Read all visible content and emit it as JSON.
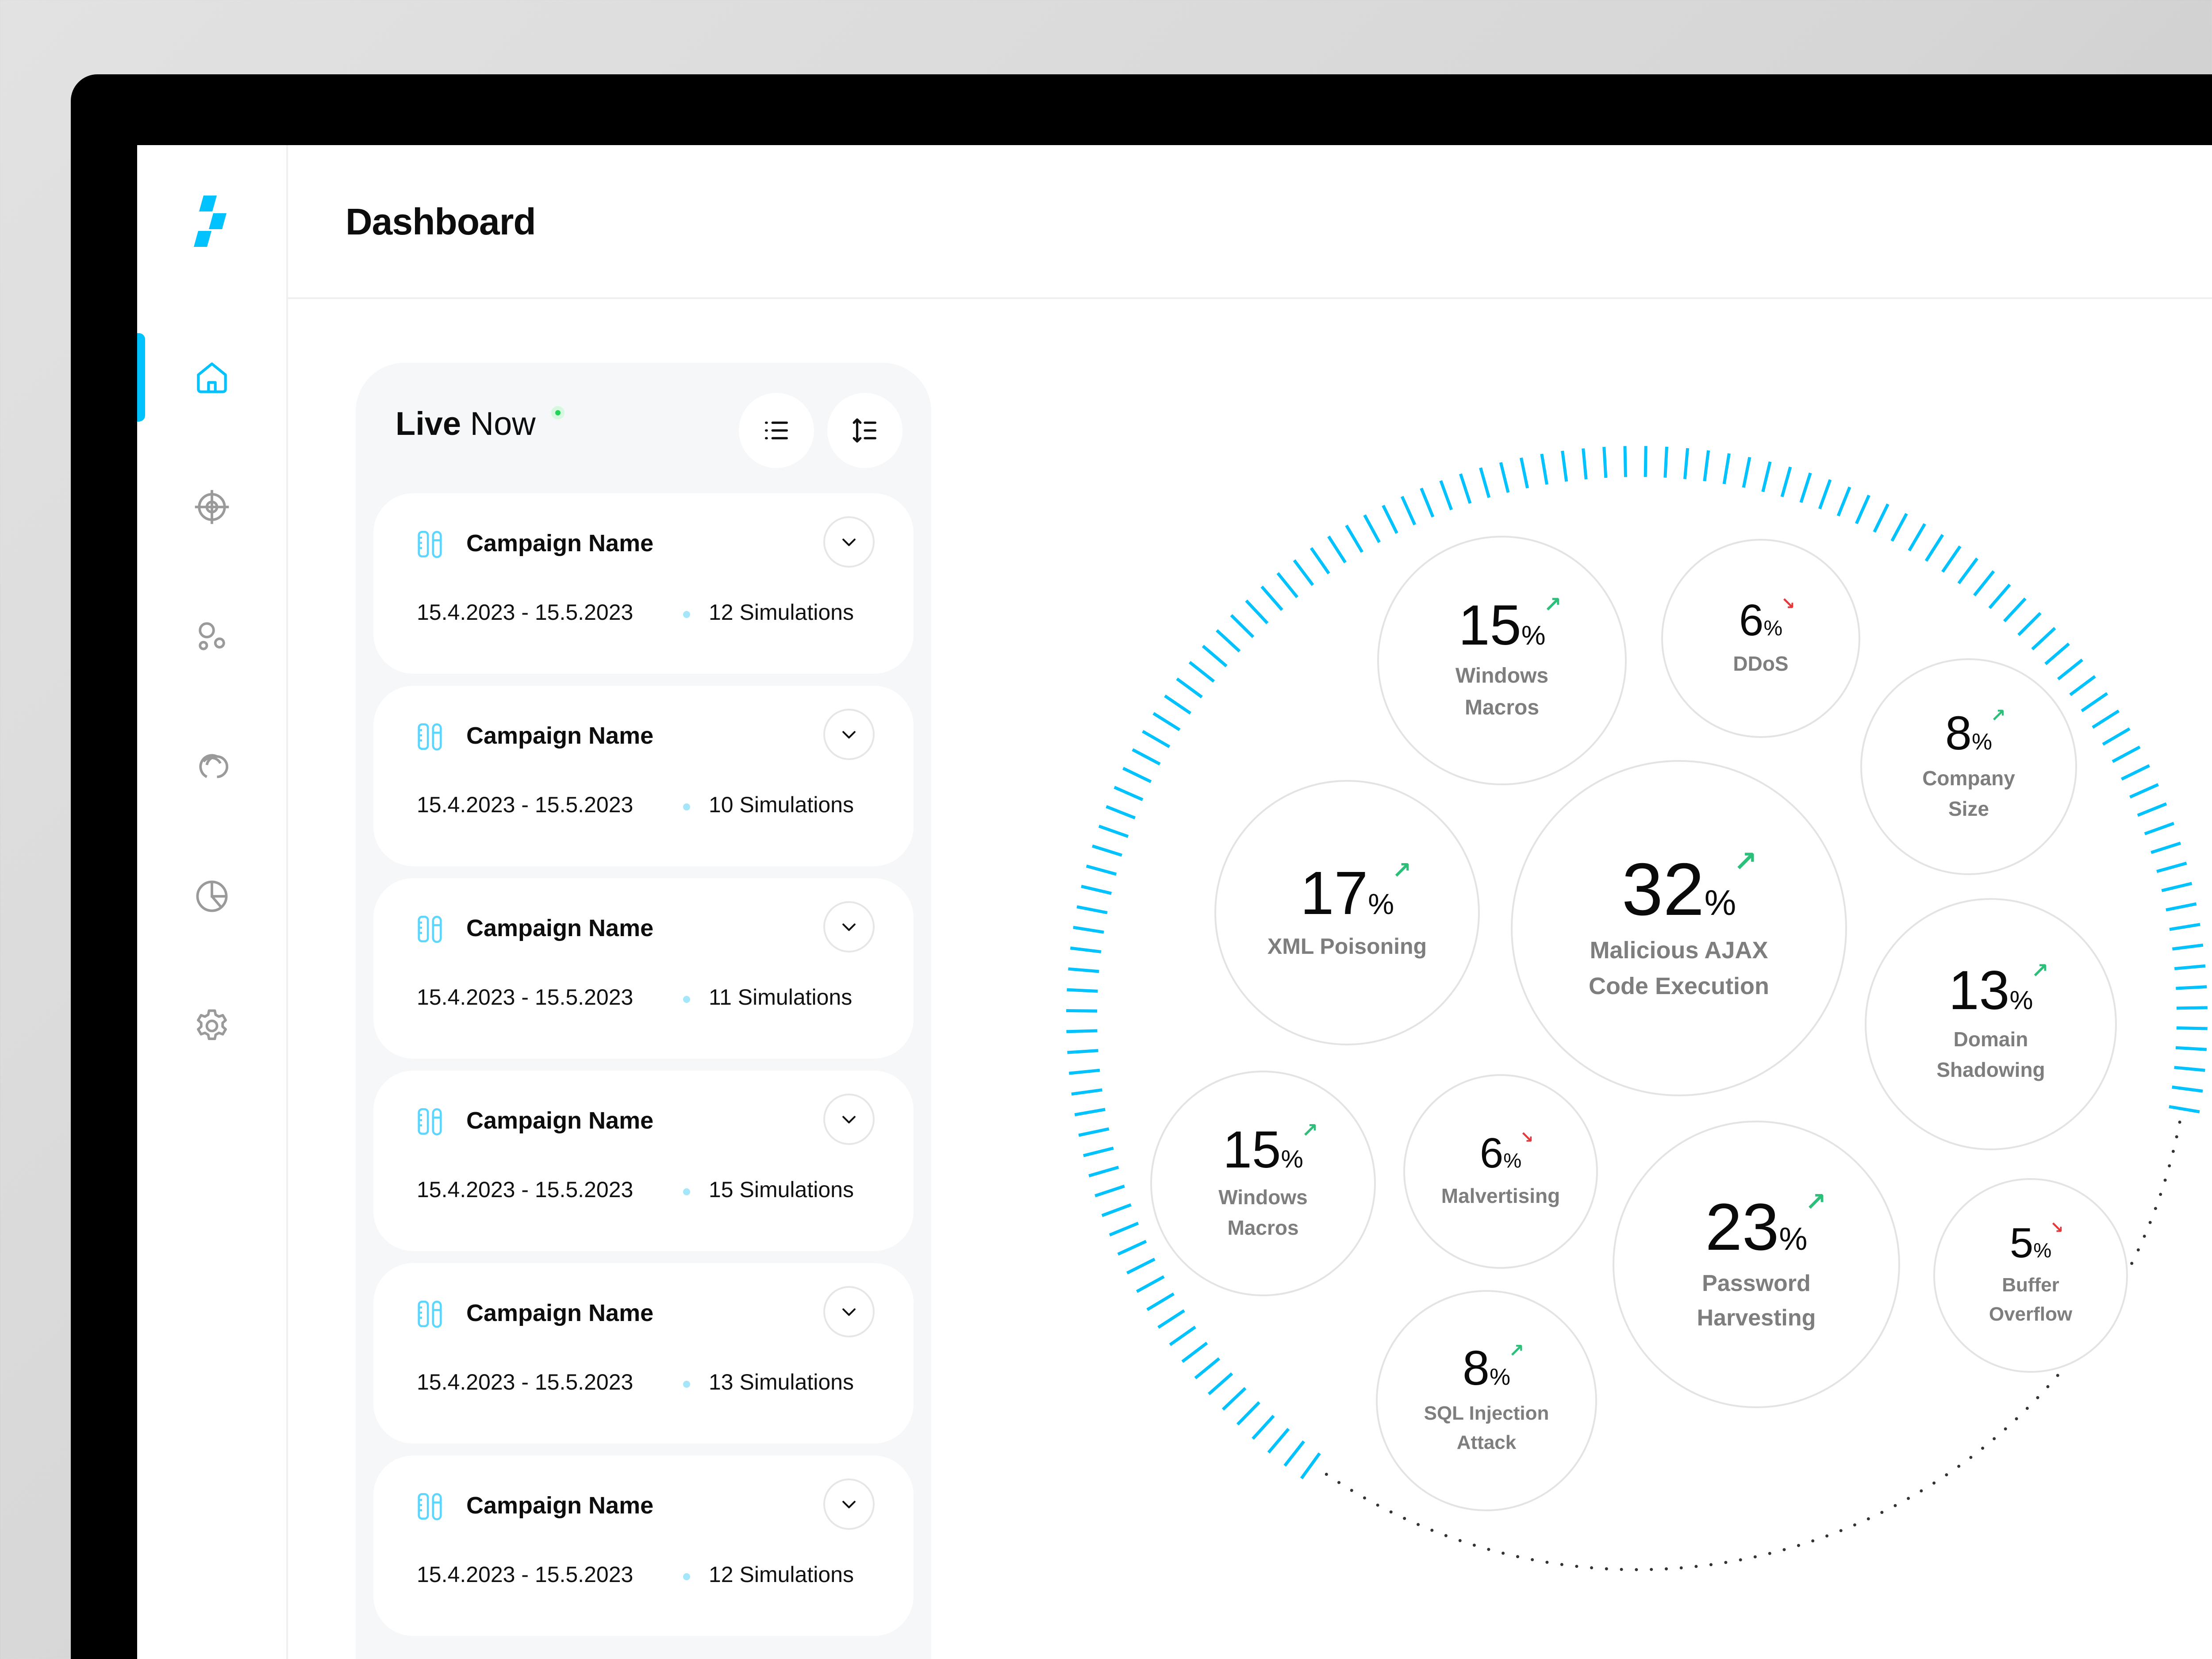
{
  "app": {
    "title": "Dashboard",
    "accent_color": "#00c2ff",
    "up_color": "#2bbf7a",
    "down_color": "#e5383b"
  },
  "sidebar": {
    "items": [
      {
        "name": "home",
        "icon": "home-icon",
        "active": true
      },
      {
        "name": "targets",
        "icon": "crosshair-icon",
        "active": false
      },
      {
        "name": "groups",
        "icon": "bubbles-icon",
        "active": false
      },
      {
        "name": "integrations",
        "icon": "link-rings-icon",
        "active": false
      },
      {
        "name": "reports",
        "icon": "pie-chart-icon",
        "active": false
      },
      {
        "name": "settings",
        "icon": "gear-icon",
        "active": false
      }
    ]
  },
  "live_panel": {
    "title_bold": "Live",
    "title_rest": " Now",
    "list_view_icon": "list-icon",
    "sort_icon": "sort-icon",
    "campaigns": [
      {
        "name": "Campaign Name",
        "dates": "15.4.2023 - 15.5.2023",
        "simulations": "12 Simulations"
      },
      {
        "name": "Campaign Name",
        "dates": "15.4.2023 - 15.5.2023",
        "simulations": "10 Simulations"
      },
      {
        "name": "Campaign Name",
        "dates": "15.4.2023 - 15.5.2023",
        "simulations": "11 Simulations"
      },
      {
        "name": "Campaign Name",
        "dates": "15.4.2023 - 15.5.2023",
        "simulations": "15 Simulations"
      },
      {
        "name": "Campaign Name",
        "dates": "15.4.2023 - 15.5.2023",
        "simulations": "13 Simulations"
      },
      {
        "name": "Campaign Name",
        "dates": "15.4.2023 - 15.5.2023",
        "simulations": "12 Simulations"
      }
    ]
  },
  "chart_data": {
    "type": "bubble",
    "title": "",
    "unit": "%",
    "decoration": "circular tick gauge (blue ticks on upper/left arc, dotted lower arc)",
    "bubbles": [
      {
        "label": "Windows Macros",
        "value": 15,
        "trend": "up"
      },
      {
        "label": "DDoS",
        "value": 6,
        "trend": "down"
      },
      {
        "label": "Company Size",
        "value": 8,
        "trend": "up"
      },
      {
        "label": "XML Poisoning",
        "value": 17,
        "trend": "up"
      },
      {
        "label": "Malicious AJAX Code Execution",
        "value": 32,
        "trend": "up"
      },
      {
        "label": "Domain Shadowing",
        "value": 13,
        "trend": "up"
      },
      {
        "label": "Windows Macros",
        "value": 15,
        "trend": "up"
      },
      {
        "label": "Malvertising",
        "value": 6,
        "trend": "down"
      },
      {
        "label": "Password Harvesting",
        "value": 23,
        "trend": "up"
      },
      {
        "label": "Buffer Overflow",
        "value": 5,
        "trend": "down"
      },
      {
        "label": "SQL Injection Attack",
        "value": 8,
        "trend": "up"
      }
    ]
  },
  "bubbles_display": [
    {
      "value": "15",
      "pct": "%",
      "arrow": "↗",
      "line1": "Windows",
      "line2": "Macros"
    },
    {
      "value": "6",
      "pct": "%",
      "arrow": "↘",
      "line1": "DDoS",
      "line2": ""
    },
    {
      "value": "8",
      "pct": "%",
      "arrow": "↗",
      "line1": "Company",
      "line2": "Size"
    },
    {
      "value": "17",
      "pct": "%",
      "arrow": "↗",
      "line1": "XML Poisoning",
      "line2": ""
    },
    {
      "value": "32",
      "pct": "%",
      "arrow": "↗",
      "line1": "Malicious AJAX",
      "line2": "Code Execution"
    },
    {
      "value": "13",
      "pct": "%",
      "arrow": "↗",
      "line1": "Domain",
      "line2": "Shadowing"
    },
    {
      "value": "15",
      "pct": "%",
      "arrow": "↗",
      "line1": "Windows",
      "line2": "Macros"
    },
    {
      "value": "6",
      "pct": "%",
      "arrow": "↘",
      "line1": "Malvertising",
      "line2": ""
    },
    {
      "value": "23",
      "pct": "%",
      "arrow": "↗",
      "line1": "Password",
      "line2": "Harvesting"
    },
    {
      "value": "5",
      "pct": "%",
      "arrow": "↘",
      "line1": "Buffer",
      "line2": "Overflow"
    },
    {
      "value": "8",
      "pct": "%",
      "arrow": "↗",
      "line1": "SQL Injection",
      "line2": "Attack"
    }
  ]
}
